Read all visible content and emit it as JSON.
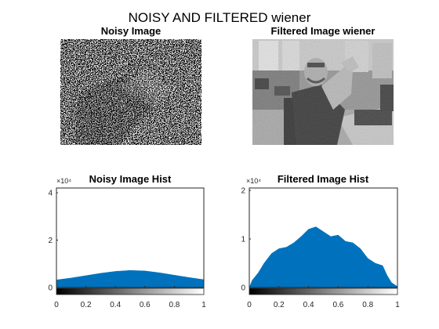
{
  "figure": {
    "suptitle": "NOISY AND FILTERED wiener"
  },
  "panels": {
    "noisy_image": {
      "title": "Noisy Image"
    },
    "filtered_image": {
      "title": "Filtered Image wiener"
    },
    "noisy_hist": {
      "title": "Noisy Image Hist",
      "exponent": "×10⁴"
    },
    "filtered_hist": {
      "title": "Filtered Image Hist",
      "exponent": "×10⁴"
    }
  },
  "colors": {
    "bar": "#0072BD",
    "axis": "#262626"
  },
  "chart_data": [
    {
      "type": "bar",
      "title": "Noisy Image Hist",
      "xlabel": "",
      "ylabel": "",
      "x_ticks": [
        "0",
        "0.2",
        "0.4",
        "0.6",
        "0.8",
        "1"
      ],
      "y_ticks": [
        "0",
        "2",
        "4"
      ],
      "xlim": [
        0,
        1
      ],
      "ylim": [
        0,
        4.2
      ],
      "y_exponent": "×10⁴",
      "x": [
        0.0,
        0.1,
        0.2,
        0.3,
        0.4,
        0.5,
        0.6,
        0.7,
        0.8,
        0.9,
        1.0
      ],
      "values": [
        0.32,
        0.4,
        0.5,
        0.6,
        0.68,
        0.72,
        0.7,
        0.62,
        0.52,
        0.42,
        0.33
      ],
      "colorbar": "grayscale"
    },
    {
      "type": "bar",
      "title": "Filtered Image Hist",
      "xlabel": "",
      "ylabel": "",
      "x_ticks": [
        "0",
        "0.2",
        "0.4",
        "0.6",
        "0.8",
        "1"
      ],
      "y_ticks": [
        "0",
        "1",
        "2"
      ],
      "xlim": [
        0,
        1
      ],
      "ylim": [
        0,
        2.05
      ],
      "y_exponent": "×10⁴",
      "x": [
        0.0,
        0.02,
        0.06,
        0.1,
        0.15,
        0.2,
        0.25,
        0.3,
        0.35,
        0.4,
        0.45,
        0.5,
        0.55,
        0.6,
        0.65,
        0.7,
        0.75,
        0.8,
        0.85,
        0.9,
        0.93,
        0.96,
        1.0
      ],
      "values": [
        0.0,
        0.15,
        0.3,
        0.5,
        0.7,
        0.8,
        0.83,
        0.92,
        1.05,
        1.2,
        1.25,
        1.15,
        1.05,
        1.08,
        0.95,
        0.92,
        0.8,
        0.6,
        0.5,
        0.45,
        0.25,
        0.1,
        0.02
      ],
      "colorbar": "grayscale"
    }
  ]
}
